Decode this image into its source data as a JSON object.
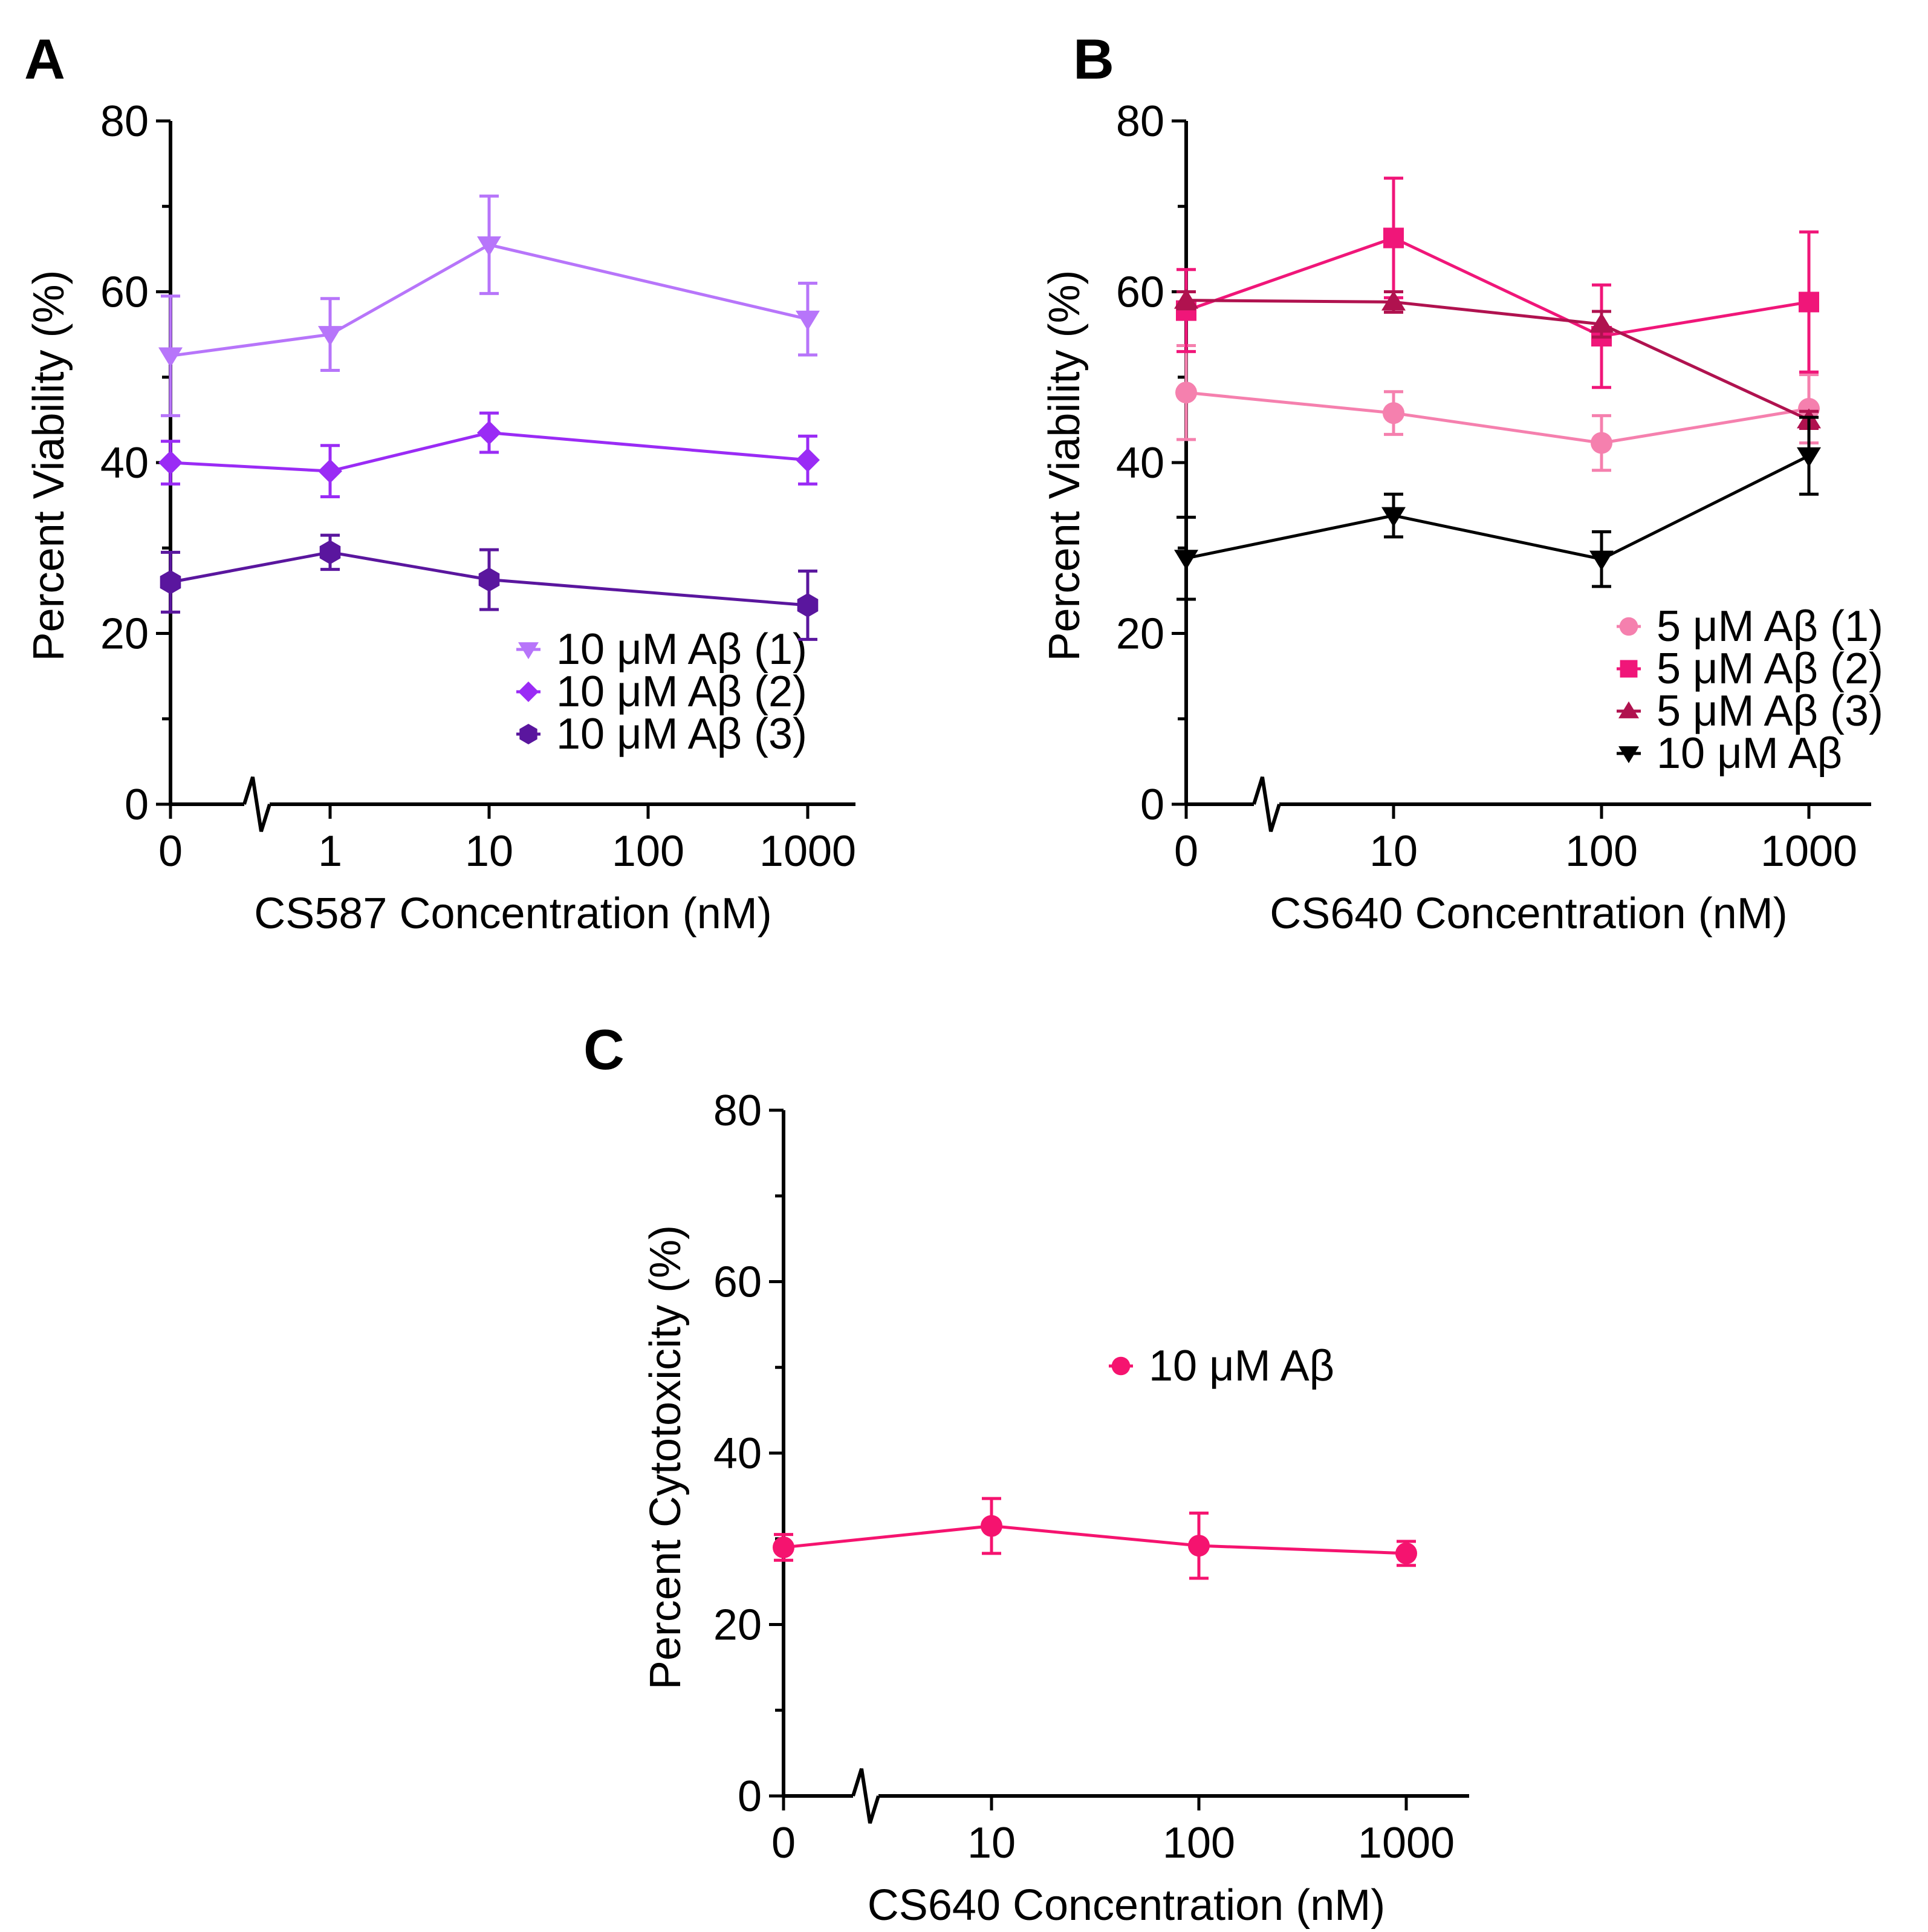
{
  "chart_data": [
    {
      "panel": "A",
      "type": "line",
      "title": "",
      "xlabel": "CS587 Concentration (nM)",
      "ylabel": "Percent Viability (%)",
      "x_ticks": [
        "0",
        "1",
        "10",
        "100",
        "1000"
      ],
      "y_ticks": [
        "0",
        "20",
        "40",
        "60",
        "80"
      ],
      "ylim": [
        0,
        80
      ],
      "grid": false,
      "axis_break": true,
      "legend_position": "lower-right",
      "series": [
        {
          "name": "10 μM Aβ (1)",
          "marker": "triangle-down",
          "color": "#B775FA",
          "x": [
            "0",
            "1",
            "10",
            "1000"
          ],
          "y": [
            52.5,
            55,
            65.5,
            56.8
          ],
          "err": [
            7,
            4.2,
            5.7,
            4.2
          ]
        },
        {
          "name": "10 μM Aβ (2)",
          "marker": "diamond",
          "color": "#9A2BF5",
          "x": [
            "0",
            "1",
            "10",
            "1000"
          ],
          "y": [
            40,
            39,
            43.5,
            40.3
          ],
          "err": [
            2.5,
            3,
            2.3,
            2.8
          ]
        },
        {
          "name": "10 μM Aβ (3)",
          "marker": "hexagon",
          "color": "#5A169E",
          "x": [
            "0",
            "1",
            "10",
            "1000"
          ],
          "y": [
            26,
            29.5,
            26.3,
            23.3
          ],
          "err": [
            3.5,
            2,
            3.5,
            4
          ]
        }
      ]
    },
    {
      "panel": "B",
      "type": "line",
      "title": "",
      "xlabel": "CS640 Concentration (nM)",
      "ylabel": "Percent Viability (%)",
      "x_ticks": [
        "0",
        "10",
        "100",
        "1000"
      ],
      "y_ticks": [
        "0",
        "20",
        "40",
        "60",
        "80"
      ],
      "ylim": [
        0,
        80
      ],
      "grid": false,
      "axis_break": true,
      "legend_position": "lower-right",
      "series": [
        {
          "name": "5 μM Aβ (1)",
          "marker": "circle",
          "color": "#F580AE",
          "x": [
            "0",
            "10",
            "100",
            "1000"
          ],
          "y": [
            48.2,
            45.8,
            42.3,
            46.3
          ],
          "err": [
            5.5,
            2.5,
            3.2,
            4
          ]
        },
        {
          "name": "5 μM Aβ (2)",
          "marker": "square",
          "color": "#F01679",
          "x": [
            "0",
            "10",
            "100",
            "1000"
          ],
          "y": [
            57.8,
            66.3,
            54.8,
            58.8
          ],
          "err": [
            4.8,
            7,
            6,
            8.2
          ]
        },
        {
          "name": "5 μM Aβ (3)",
          "marker": "triangle-up",
          "color": "#B0124F",
          "x": [
            "0",
            "10",
            "100",
            "1000"
          ],
          "y": [
            59,
            58.8,
            56.2,
            45
          ],
          "err": [
            1,
            1.2,
            1.5,
            1
          ]
        },
        {
          "name": "10 μM Aβ",
          "marker": "triangle-down",
          "color": "#000000",
          "x": [
            "0",
            "10",
            "100",
            "1000"
          ],
          "y": [
            28.8,
            33.8,
            28.7,
            40.8
          ],
          "err": [
            4.8,
            2.5,
            3.2,
            4.5
          ]
        }
      ]
    },
    {
      "panel": "C",
      "type": "line",
      "title": "",
      "xlabel": "CS640 Concentration (nM)",
      "ylabel": "Percent Cytotoxicity (%)",
      "x_ticks": [
        "0",
        "10",
        "100",
        "1000"
      ],
      "y_ticks": [
        "0",
        "20",
        "40",
        "60",
        "80"
      ],
      "ylim": [
        0,
        80
      ],
      "grid": false,
      "axis_break": true,
      "legend_position": "center-right",
      "series": [
        {
          "name": "10 μM Aβ",
          "marker": "circle",
          "color": "#F5136F",
          "x": [
            "0",
            "10",
            "100",
            "1000"
          ],
          "y": [
            29,
            31.5,
            29.2,
            28.3
          ],
          "err": [
            1.5,
            3.2,
            3.8,
            1.4
          ]
        }
      ]
    }
  ]
}
